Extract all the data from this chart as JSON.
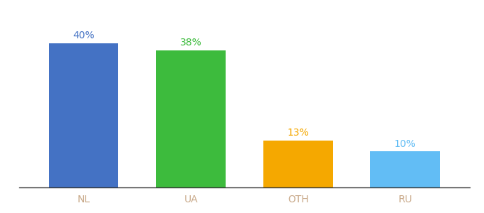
{
  "categories": [
    "NL",
    "UA",
    "OTH",
    "RU"
  ],
  "values": [
    40,
    38,
    13,
    10
  ],
  "bar_colors": [
    "#4472c4",
    "#3dbb3d",
    "#f5a800",
    "#62bdf5"
  ],
  "label_colors": [
    "#4472c4",
    "#3dbb3d",
    "#f5a800",
    "#62bdf5"
  ],
  "ylim": [
    0,
    46
  ],
  "bar_width": 0.65,
  "figsize": [
    6.8,
    3.0
  ],
  "dpi": 100,
  "background_color": "#ffffff",
  "label_fontsize": 10,
  "tick_fontsize": 10,
  "tick_color": "#c8a888"
}
